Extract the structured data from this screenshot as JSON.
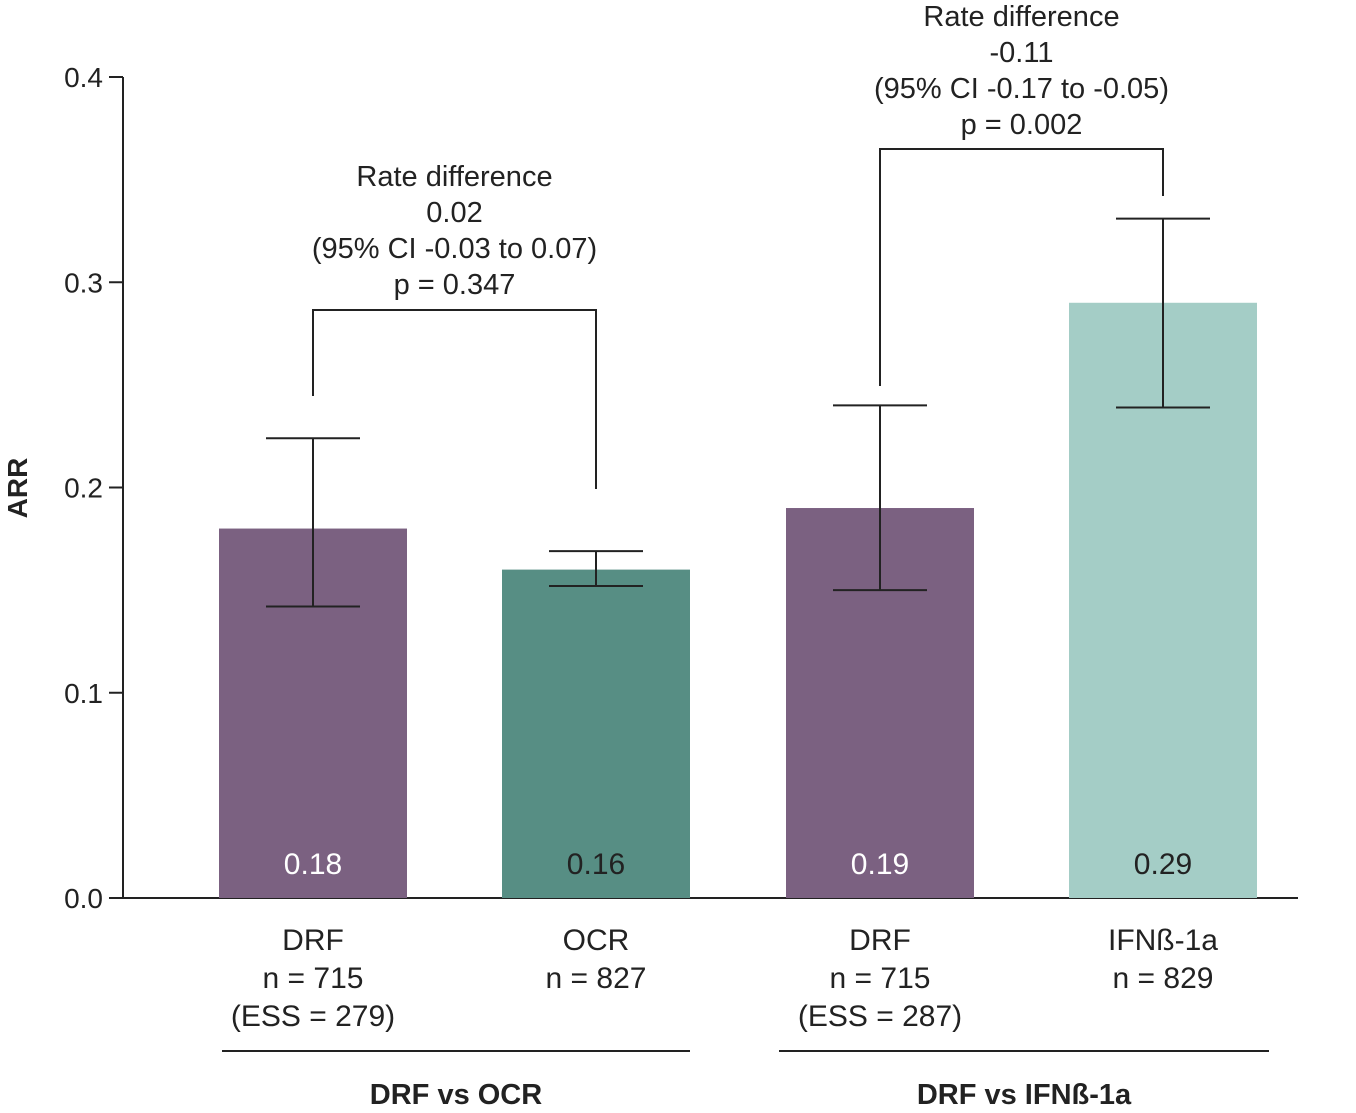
{
  "chart_data": {
    "type": "bar",
    "ylabel": "ARR",
    "ylim": [
      0,
      0.4
    ],
    "yticks": [
      "0.0",
      "0.1",
      "0.2",
      "0.3",
      "0.4"
    ],
    "grid": false,
    "bars": [
      {
        "category": [
          "DRF",
          "n = 715",
          "(ESS = 279)"
        ],
        "value": 0.18,
        "value_label": "0.18",
        "ci": [
          0.142,
          0.224
        ],
        "color": "#7b6181",
        "label_color": "#ffffff"
      },
      {
        "category": [
          "OCR",
          "n = 827"
        ],
        "value": 0.16,
        "value_label": "0.16",
        "ci": [
          0.152,
          0.169
        ],
        "color": "#578e84",
        "label_color": "#222222"
      },
      {
        "category": [
          "DRF",
          "n = 715",
          "(ESS = 287)"
        ],
        "value": 0.19,
        "value_label": "0.19",
        "ci": [
          0.15,
          0.24
        ],
        "color": "#7b6181",
        "label_color": "#ffffff"
      },
      {
        "category": [
          "IFNß-1a",
          "n = 829"
        ],
        "value": 0.29,
        "value_label": "0.29",
        "ci": [
          0.239,
          0.331
        ],
        "color": "#a4cdc6",
        "label_color": "#222222"
      }
    ],
    "groups": [
      {
        "label": "DRF vs OCR",
        "bars": [
          0,
          1
        ]
      },
      {
        "label": "DRF vs IFNß-1a",
        "bars": [
          2,
          3
        ]
      }
    ],
    "annotations": [
      {
        "bars": [
          0,
          1
        ],
        "lines": [
          "Rate difference",
          "0.02",
          "(95% CI -0.03 to 0.07)",
          "p  = 0.347"
        ]
      },
      {
        "bars": [
          2,
          3
        ],
        "lines": [
          "Rate difference",
          "-0.11",
          "(95% CI -0.17 to -0.05)",
          "p = 0.002"
        ]
      }
    ]
  }
}
